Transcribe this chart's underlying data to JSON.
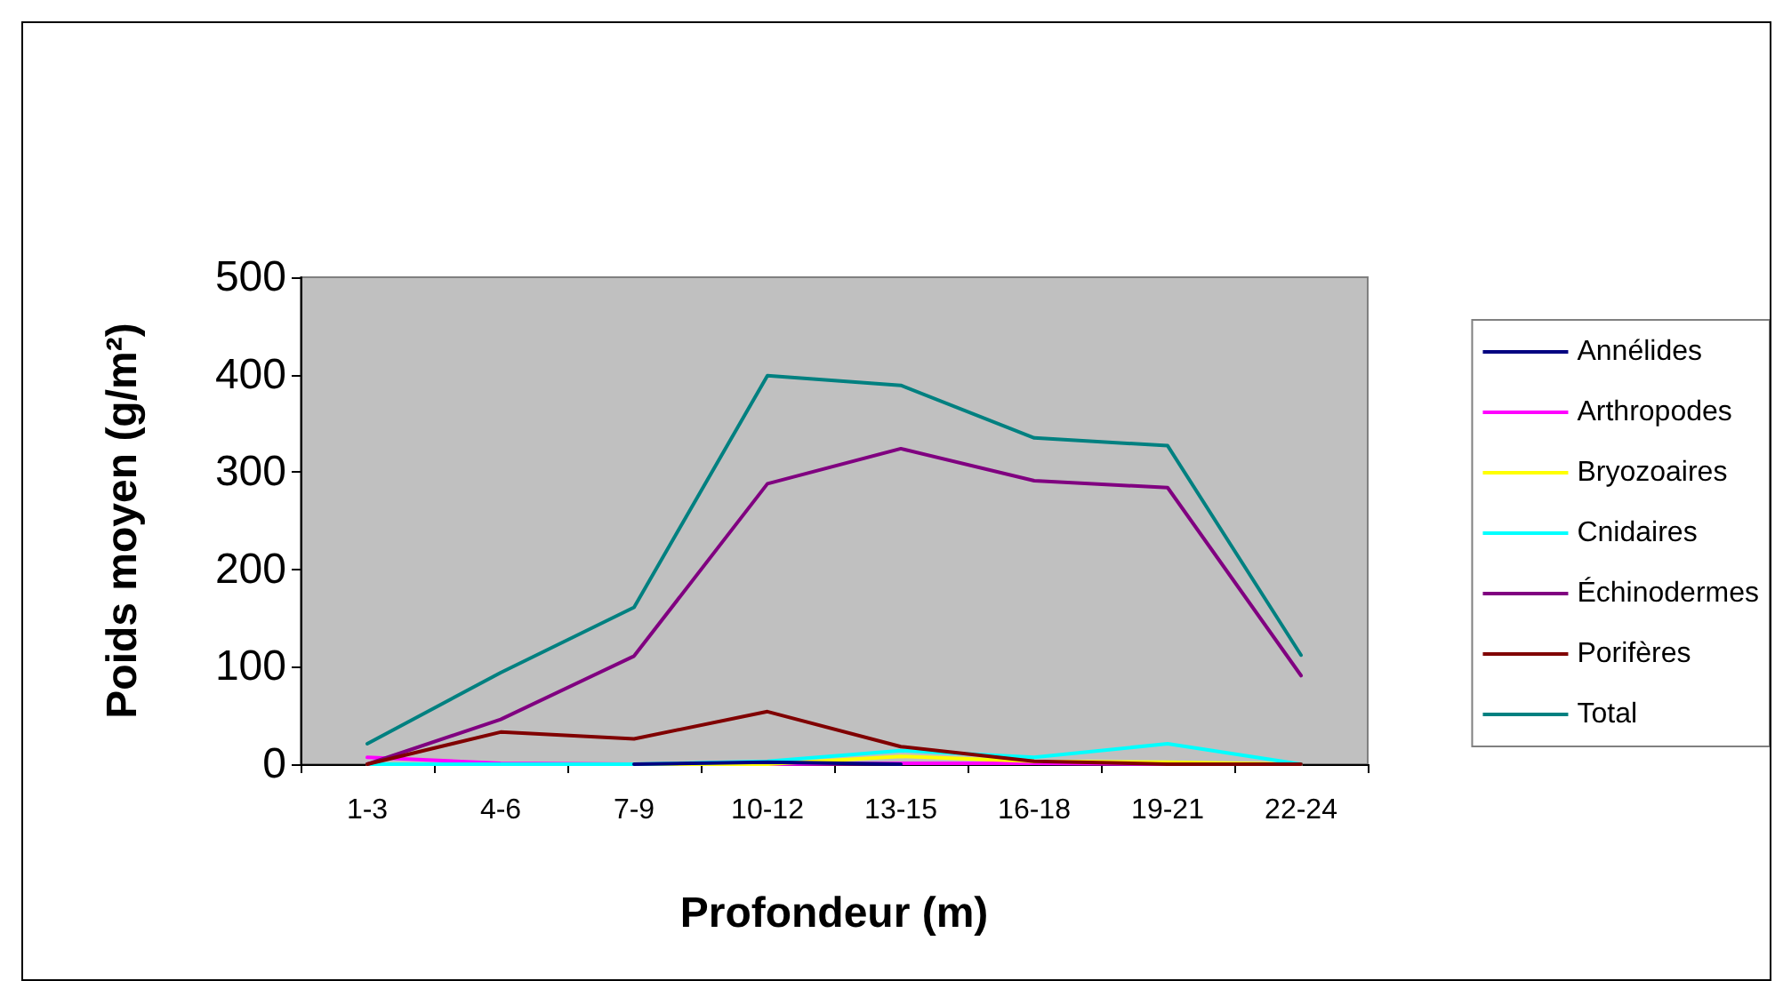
{
  "chart_data": {
    "type": "line",
    "xlabel": "Profondeur (m)",
    "ylabel": "Poids moyen (g/m²)",
    "categories": [
      "1-3",
      "4-6",
      "7-9",
      "10-12",
      "13-15",
      "16-18",
      "19-21",
      "22-24"
    ],
    "series": [
      {
        "name": "Annélides",
        "color": "#000080",
        "values": [
          null,
          null,
          0,
          2,
          0,
          null,
          null,
          null
        ]
      },
      {
        "name": "Arthropodes",
        "color": "#ff00ff",
        "values": [
          7,
          1,
          0,
          0,
          1,
          1,
          0,
          0
        ]
      },
      {
        "name": "Bryozoaires",
        "color": "#ffff00",
        "values": [
          0,
          0,
          0,
          0,
          8,
          3,
          2,
          0
        ]
      },
      {
        "name": "Cnidaires",
        "color": "#00ffff",
        "values": [
          0,
          0,
          0,
          3,
          14,
          7,
          21,
          0
        ]
      },
      {
        "name": "Échinodermes",
        "color": "#800080",
        "values": [
          0,
          46,
          111,
          288,
          324,
          291,
          284,
          91
        ]
      },
      {
        "name": "Porifères",
        "color": "#800000",
        "values": [
          0,
          33,
          26,
          54,
          18,
          3,
          0,
          0
        ]
      },
      {
        "name": "Total",
        "color": "#008080",
        "values": [
          21,
          94,
          161,
          399,
          389,
          335,
          327,
          112
        ]
      }
    ],
    "ylim": [
      0,
      500
    ],
    "yticks": [
      0,
      100,
      200,
      300,
      400,
      500
    ],
    "grid": false,
    "legend": "right",
    "marker": "none",
    "line_style": "solid"
  }
}
